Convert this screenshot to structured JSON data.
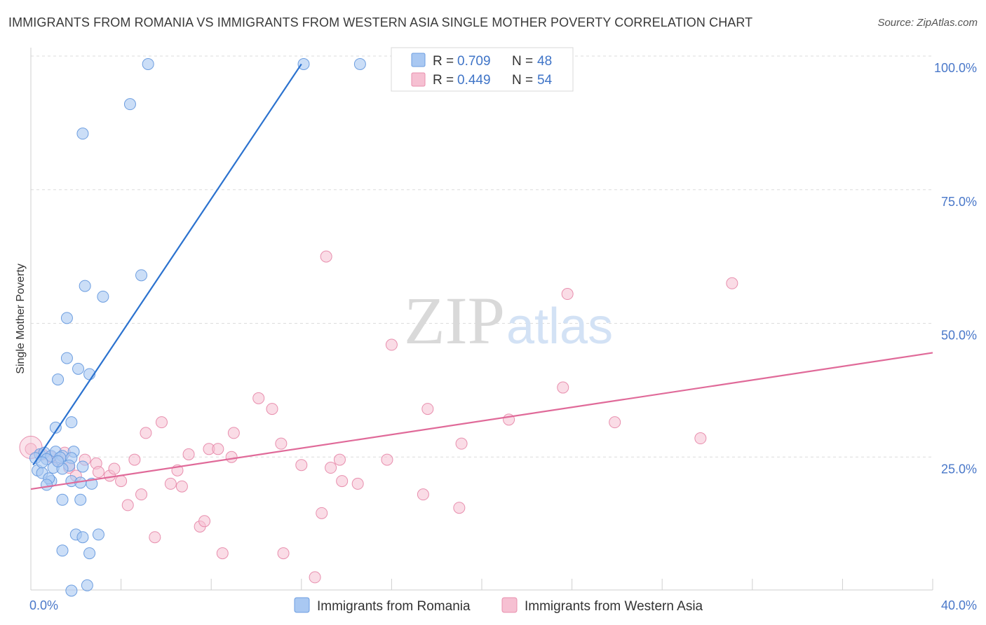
{
  "header": {
    "title": "IMMIGRANTS FROM ROMANIA VS IMMIGRANTS FROM WESTERN ASIA SINGLE MOTHER POVERTY CORRELATION CHART",
    "source": "Source: ZipAtlas.com"
  },
  "watermark": {
    "part1": "ZIP",
    "part2": "atlas"
  },
  "legend": {
    "r_label": "R =",
    "n_label": "N =",
    "rows": [
      {
        "r": "0.709",
        "n": "48"
      },
      {
        "r": "0.449",
        "n": "54"
      }
    ]
  },
  "colors": {
    "romania_fill": "#a9c8f2",
    "romania_stroke": "#6d9ee0",
    "romania_line": "#2b72cf",
    "wasia_fill": "#f6c0d2",
    "wasia_stroke": "#e88fae",
    "wasia_line": "#e06a99"
  },
  "chart_data": {
    "type": "scatter",
    "title": "IMMIGRANTS FROM ROMANIA VS IMMIGRANTS FROM WESTERN ASIA SINGLE MOTHER POVERTY CORRELATION CHART",
    "xlabel": "",
    "ylabel": "Single Mother Poverty",
    "xlim": [
      0,
      40
    ],
    "ylim": [
      0,
      102
    ],
    "x_ticks": [
      {
        "value": 0,
        "label": "0.0%"
      },
      {
        "value": 40,
        "label": "40.0%"
      }
    ],
    "y_ticks": [
      {
        "value": 25,
        "label": "25.0%"
      },
      {
        "value": 50,
        "label": "50.0%"
      },
      {
        "value": 75,
        "label": "75.0%"
      },
      {
        "value": 100,
        "label": "100.0%"
      }
    ],
    "series": [
      {
        "name": "Immigrants from Romania",
        "R": 0.709,
        "N": 48,
        "trend": [
          [
            0.1,
            23.5
          ],
          [
            12.0,
            98.5
          ]
        ],
        "points": [
          [
            5.2,
            98.5
          ],
          [
            12.1,
            98.5
          ],
          [
            14.6,
            98.5
          ],
          [
            4.4,
            91.0
          ],
          [
            2.3,
            85.5
          ],
          [
            4.9,
            59.0
          ],
          [
            2.4,
            57.0
          ],
          [
            3.2,
            55.0
          ],
          [
            1.6,
            51.0
          ],
          [
            1.6,
            43.5
          ],
          [
            2.1,
            41.5
          ],
          [
            2.6,
            40.5
          ],
          [
            1.2,
            39.5
          ],
          [
            1.8,
            31.5
          ],
          [
            1.1,
            30.5
          ],
          [
            0.4,
            25.5
          ],
          [
            0.6,
            25.8
          ],
          [
            0.9,
            25.2
          ],
          [
            1.1,
            26.0
          ],
          [
            1.9,
            26.0
          ],
          [
            1.4,
            25.2
          ],
          [
            1.8,
            24.8
          ],
          [
            0.2,
            24.8
          ],
          [
            0.7,
            24.6
          ],
          [
            1.3,
            24.9
          ],
          [
            0.3,
            22.5
          ],
          [
            1.0,
            23.0
          ],
          [
            1.7,
            23.4
          ],
          [
            2.3,
            23.2
          ],
          [
            0.5,
            22.0
          ],
          [
            0.9,
            20.5
          ],
          [
            1.8,
            20.5
          ],
          [
            2.7,
            20.0
          ],
          [
            0.8,
            21.0
          ],
          [
            2.2,
            20.2
          ],
          [
            0.7,
            19.8
          ],
          [
            1.4,
            22.8
          ],
          [
            1.4,
            17.0
          ],
          [
            2.2,
            17.0
          ],
          [
            2.0,
            10.5
          ],
          [
            2.3,
            10.0
          ],
          [
            3.0,
            10.5
          ],
          [
            1.4,
            7.5
          ],
          [
            2.6,
            7.0
          ],
          [
            2.5,
            1.0
          ],
          [
            1.8,
            0.0
          ],
          [
            0.5,
            24.0
          ],
          [
            1.2,
            24.2
          ]
        ]
      },
      {
        "name": "Immigrants from Western Asia",
        "R": 0.449,
        "N": 54,
        "trend": [
          [
            0.0,
            19.0
          ],
          [
            40.0,
            44.5
          ]
        ],
        "points": [
          [
            0.0,
            26.5
          ],
          [
            0.5,
            25.5
          ],
          [
            0.9,
            25.0
          ],
          [
            1.2,
            24.5
          ],
          [
            1.7,
            23.0
          ],
          [
            2.4,
            24.5
          ],
          [
            2.9,
            23.8
          ],
          [
            3.0,
            22.2
          ],
          [
            3.5,
            21.5
          ],
          [
            3.7,
            22.8
          ],
          [
            4.0,
            20.5
          ],
          [
            4.3,
            16.0
          ],
          [
            4.6,
            24.5
          ],
          [
            4.9,
            18.0
          ],
          [
            5.1,
            29.5
          ],
          [
            5.5,
            10.0
          ],
          [
            5.8,
            31.5
          ],
          [
            6.2,
            20.0
          ],
          [
            6.5,
            22.5
          ],
          [
            6.7,
            19.5
          ],
          [
            7.0,
            25.5
          ],
          [
            7.5,
            12.0
          ],
          [
            7.7,
            13.0
          ],
          [
            7.9,
            26.5
          ],
          [
            8.3,
            26.5
          ],
          [
            8.5,
            7.0
          ],
          [
            8.9,
            25.0
          ],
          [
            9.0,
            29.5
          ],
          [
            10.1,
            36.0
          ],
          [
            10.7,
            34.0
          ],
          [
            11.1,
            27.5
          ],
          [
            11.2,
            7.0
          ],
          [
            12.0,
            23.5
          ],
          [
            12.6,
            2.5
          ],
          [
            12.9,
            14.5
          ],
          [
            13.1,
            62.5
          ],
          [
            13.3,
            23.0
          ],
          [
            13.7,
            24.5
          ],
          [
            13.8,
            20.5
          ],
          [
            14.5,
            20.0
          ],
          [
            15.8,
            24.5
          ],
          [
            16.0,
            46.0
          ],
          [
            17.4,
            18.0
          ],
          [
            17.6,
            34.0
          ],
          [
            19.1,
            27.5
          ],
          [
            19.0,
            15.5
          ],
          [
            21.2,
            32.0
          ],
          [
            23.6,
            38.0
          ],
          [
            23.8,
            55.5
          ],
          [
            25.9,
            31.5
          ],
          [
            31.1,
            57.5
          ],
          [
            29.7,
            28.5
          ],
          [
            1.5,
            25.8
          ],
          [
            2.0,
            21.5
          ]
        ]
      }
    ]
  },
  "bottom_legend": {
    "items": [
      {
        "label": "Immigrants from Romania"
      },
      {
        "label": "Immigrants from Western Asia"
      }
    ]
  }
}
